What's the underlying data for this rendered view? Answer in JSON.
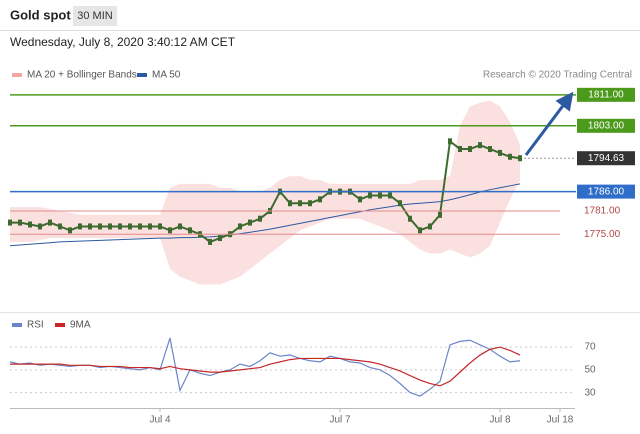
{
  "header": {
    "title": "Gold spot",
    "timeframe": "30 MIN",
    "timestamp": "Wednesday, July 8, 2020 3:40:12 AM CET",
    "credit": "Research © 2020 Trading Central"
  },
  "chart_data": [
    {
      "type": "line",
      "color": "#3d6b2f",
      "values": [
        1778,
        1778,
        1777.5,
        1777,
        1778,
        1777,
        1776,
        1777,
        1777,
        1777,
        1777,
        1777,
        1777,
        1777,
        1777,
        1777,
        1776,
        1777,
        1776,
        1775,
        1773,
        1774,
        1775,
        1777,
        1778,
        1779,
        1781,
        1786,
        1783,
        1783,
        1783,
        1784,
        1786,
        1786,
        1786,
        1784,
        1785,
        1785,
        1785,
        1783,
        1779,
        1776,
        1777,
        1780,
        1799,
        1797,
        1797,
        1798,
        1797,
        1796,
        1795,
        1794.63,
        null,
        null,
        null,
        null
      ],
      "series": [
        {
          "name": "MA 20 + Bollinger Bands",
          "color": "#f3a6a6",
          "upper": [
            1782,
            1782,
            1782,
            1782,
            1781.5,
            1781,
            1780.5,
            1780,
            1780,
            1780,
            1780,
            1780,
            1780,
            1780,
            1780,
            1780,
            1787,
            1788,
            1788,
            1788,
            1788,
            1787,
            1787,
            1786,
            1786,
            1786,
            1787,
            1789,
            1790,
            1790,
            1789,
            1789,
            1788,
            1788,
            1788,
            1788,
            1788,
            1788,
            1788,
            1788,
            1788,
            1789,
            1789,
            1789,
            1790,
            1803,
            1808,
            1809,
            1809.5,
            1808,
            1804,
            1798,
            null,
            null,
            null,
            null
          ],
          "lower": [
            1773,
            1773,
            1773,
            1773.5,
            1774,
            1774,
            1774,
            1774,
            1774,
            1774,
            1774,
            1774,
            1774,
            1774,
            1774,
            1774,
            1766,
            1764,
            1763,
            1762,
            1762,
            1762,
            1763,
            1764,
            1766,
            1768,
            1770,
            1772,
            1774,
            1776,
            1777,
            1778,
            1779,
            1779,
            1779,
            1779,
            1778,
            1777,
            1776,
            1775,
            1773,
            1771,
            1770,
            1770,
            1771,
            1770,
            1769,
            1770,
            1772,
            1778,
            1784,
            1789,
            null,
            null,
            null,
            null
          ]
        },
        {
          "name": "MA 50",
          "color": "#2c5aa0",
          "values": [
            1772,
            1772.2,
            1772.4,
            1772.6,
            1772.8,
            1773,
            1773.1,
            1773.2,
            1773.3,
            1773.4,
            1773.5,
            1773.6,
            1773.7,
            1773.8,
            1773.9,
            1774,
            1774,
            1774.1,
            1774.1,
            1774.2,
            1774.3,
            1774.5,
            1774.8,
            1775.1,
            1775.5,
            1775.9,
            1776.3,
            1776.8,
            1777.3,
            1777.8,
            1778.3,
            1778.8,
            1779.3,
            1779.8,
            1780.3,
            1780.8,
            1781.3,
            1781.7,
            1782.1,
            1782.5,
            1782.8,
            1783,
            1783.2,
            1783.4,
            1783.9,
            1784.5,
            1785.2,
            1785.9,
            1786.5,
            1787,
            1787.5,
            1788,
            null,
            null,
            null,
            null
          ]
        }
      ],
      "levels": [
        {
          "value": 1811,
          "label": "1811.00",
          "color": "#4c9a1c",
          "style": "box"
        },
        {
          "value": 1803,
          "label": "1803.00",
          "color": "#4c9a1c",
          "style": "box"
        },
        {
          "value": 1794.63,
          "label": "1794.63",
          "color": "#333333",
          "style": "current"
        },
        {
          "value": 1786,
          "label": "1786.00",
          "color": "#2f6ec8",
          "style": "box"
        },
        {
          "value": 1781,
          "label": "1781.00",
          "color": "#e58a8a",
          "style": "text"
        },
        {
          "value": 1775,
          "label": "1775.00",
          "color": "#e58a8a",
          "style": "text"
        }
      ],
      "ylim": [
        1758,
        1820
      ]
    },
    {
      "type": "line",
      "categories": [
        null,
        null,
        null,
        null,
        null,
        null,
        null,
        null,
        null,
        null,
        null,
        null,
        null,
        null,
        null,
        "Jul 4",
        null,
        null,
        null,
        null,
        null,
        null,
        null,
        null,
        null,
        null,
        null,
        null,
        null,
        null,
        null,
        null,
        null,
        "Jul 7",
        null,
        null,
        null,
        null,
        null,
        null,
        null,
        null,
        null,
        null,
        null,
        null,
        null,
        null,
        null,
        "Jul 8",
        null,
        null,
        null,
        null,
        null,
        "Jul 18"
      ],
      "series": [
        {
          "name": "RSI",
          "color": "#6b86c6",
          "values": [
            57,
            55,
            56,
            54,
            55,
            54,
            53,
            54,
            54,
            52,
            53,
            52,
            51,
            50,
            52,
            50,
            78,
            32,
            50,
            47,
            45,
            48,
            50,
            55,
            53,
            58,
            65,
            62,
            63,
            60,
            58,
            57,
            62,
            60,
            57,
            56,
            52,
            50,
            45,
            38,
            30,
            27,
            33,
            40,
            72,
            75,
            76,
            72,
            68,
            62,
            57,
            58,
            null,
            null,
            null,
            null
          ]
        },
        {
          "name": "9MA",
          "color": "#c62828",
          "values": [
            55,
            55,
            55,
            55,
            55,
            55,
            54,
            54,
            54,
            53,
            53,
            53,
            52,
            52,
            52,
            51,
            53,
            51,
            50,
            49,
            48,
            48,
            49,
            50,
            51,
            52,
            55,
            57,
            59,
            60,
            60,
            60,
            60,
            60,
            59,
            58,
            57,
            55,
            52,
            49,
            45,
            41,
            38,
            36,
            40,
            48,
            56,
            63,
            68,
            70,
            67,
            63,
            null,
            null,
            null,
            null
          ]
        }
      ],
      "ylim": [
        20,
        85
      ],
      "yticks": [
        30,
        50,
        70
      ],
      "grid": true
    }
  ]
}
